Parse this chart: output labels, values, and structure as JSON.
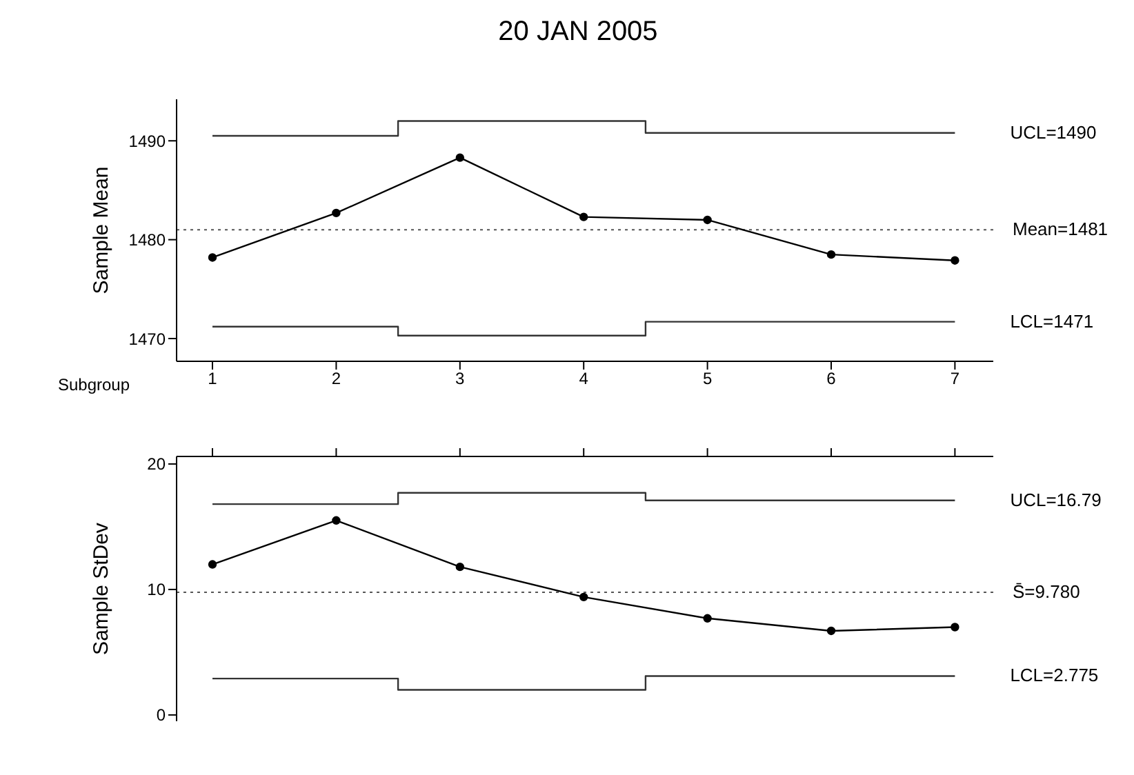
{
  "chart_data": [
    {
      "type": "line",
      "title": "20 JAN 2005",
      "xlabel": "Subgroup",
      "ylabel": "Sample Mean",
      "x": [
        1,
        2,
        3,
        4,
        5,
        6,
        7
      ],
      "xlim": [
        0.71,
        7.31
      ],
      "xticks": [
        1,
        2,
        3,
        4,
        5,
        6,
        7
      ],
      "ylim": [
        1467.7,
        1494.2
      ],
      "yticks": [
        1470,
        1480,
        1490
      ],
      "marker": "circle",
      "series": [
        {
          "color": "#000000",
          "values": [
            1478.2,
            1482.7,
            1488.3,
            1482.3,
            1482.0,
            1478.5,
            1477.9
          ]
        },
        {
          "name": "UCL=1490",
          "type": "step",
          "color": "#333333",
          "marker": "none",
          "values": [
            1490.5,
            1490.5,
            1492.0,
            1492.0,
            1490.8,
            1490.8,
            1490.8
          ]
        },
        {
          "name": "LCL=1471",
          "type": "step",
          "color": "#333333",
          "marker": "none",
          "values": [
            1471.2,
            1471.2,
            1470.3,
            1470.3,
            1471.7,
            1471.7,
            1471.7
          ]
        }
      ],
      "ref_lines": [
        {
          "axis": "y",
          "value": 1481,
          "label": "Mean=1481",
          "color": "#555555",
          "line_style": "dotted"
        }
      ]
    },
    {
      "type": "line",
      "ylabel": "Sample StDev",
      "x": [
        1,
        2,
        3,
        4,
        5,
        6,
        7
      ],
      "xlim": [
        0.71,
        7.31
      ],
      "xticks": [
        {
          "value": 1,
          "label": null
        },
        {
          "value": 2,
          "label": null
        },
        {
          "value": 3,
          "label": null
        },
        {
          "value": 4,
          "label": null
        },
        {
          "value": 5,
          "label": null
        },
        {
          "value": 6,
          "label": null
        },
        {
          "value": 7,
          "label": null
        }
      ],
      "ylim": [
        -0.5,
        20.6
      ],
      "yticks": [
        0,
        10,
        20
      ],
      "tick_labels": "y",
      "marker": "circle",
      "series": [
        {
          "color": "#000000",
          "values": [
            12.0,
            15.5,
            11.8,
            9.4,
            7.7,
            6.7,
            7.0
          ]
        },
        {
          "name": "UCL=16.79",
          "type": "step",
          "color": "#333333",
          "marker": "none",
          "values": [
            16.8,
            16.8,
            17.7,
            17.7,
            17.1,
            17.1,
            17.1
          ]
        },
        {
          "name": "LCL=2.775",
          "type": "step",
          "color": "#333333",
          "marker": "none",
          "values": [
            2.9,
            2.9,
            2.0,
            2.0,
            3.1,
            3.1,
            3.1
          ]
        }
      ],
      "ref_lines": [
        {
          "axis": "y",
          "value": 9.78,
          "label": "S̄=9.780",
          "color": "#555555",
          "line_style": "dotted"
        }
      ]
    }
  ]
}
